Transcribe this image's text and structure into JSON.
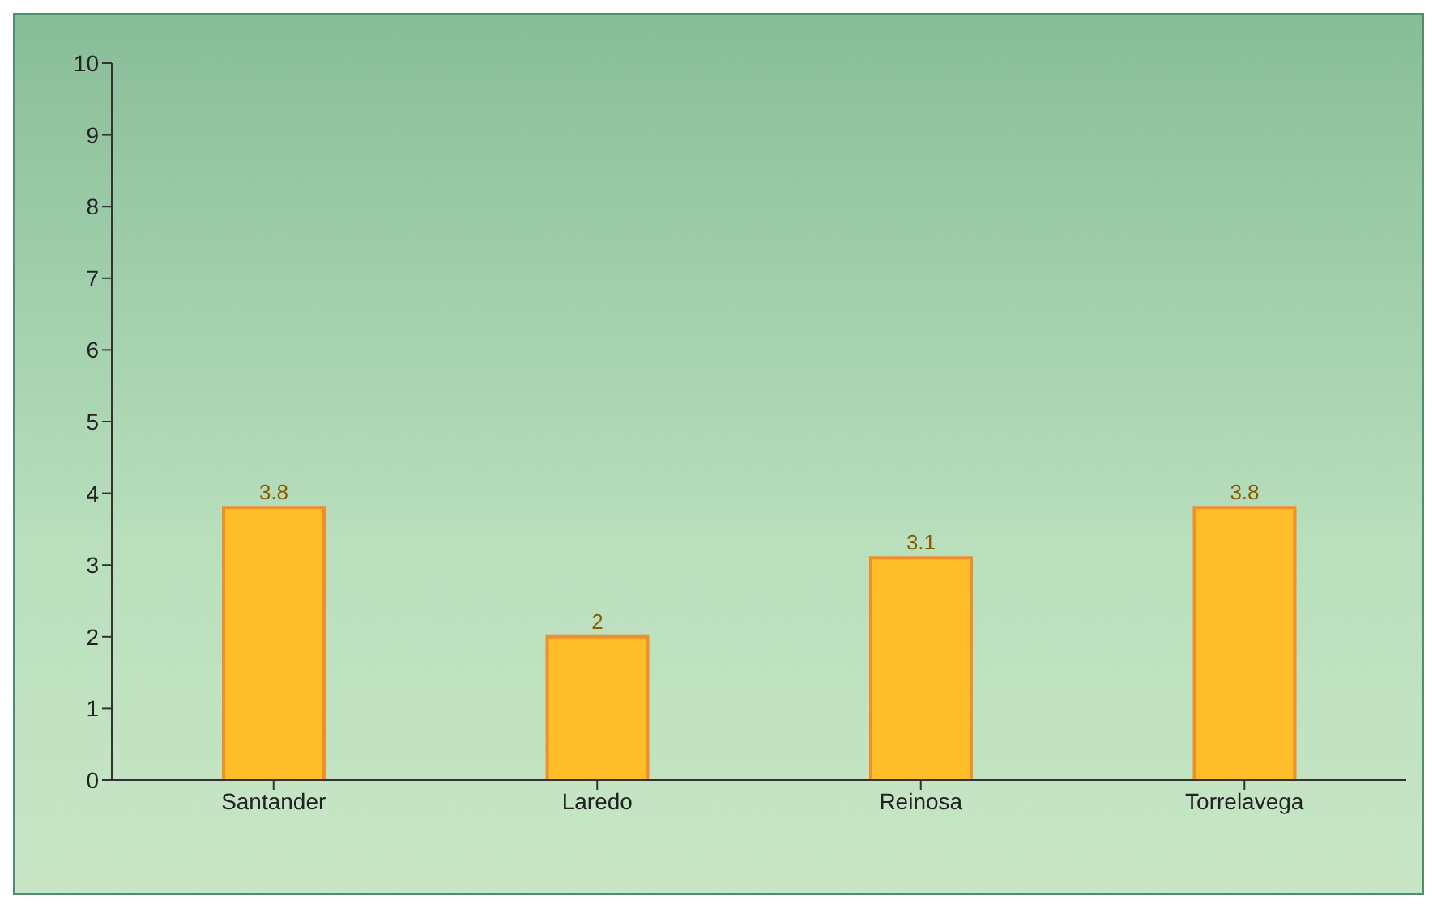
{
  "chart_data": {
    "type": "bar",
    "categories": [
      "Santander",
      "Laredo",
      "Reinosa",
      "Torrelavega"
    ],
    "values": [
      3.8,
      2,
      3.1,
      3.8
    ],
    "color": "#fdbe2a",
    "ylim": [
      0,
      10
    ],
    "yticks": [
      0,
      1,
      2,
      3,
      4,
      5,
      6,
      7,
      8,
      9,
      10
    ],
    "grid": false,
    "data_labels": true
  }
}
